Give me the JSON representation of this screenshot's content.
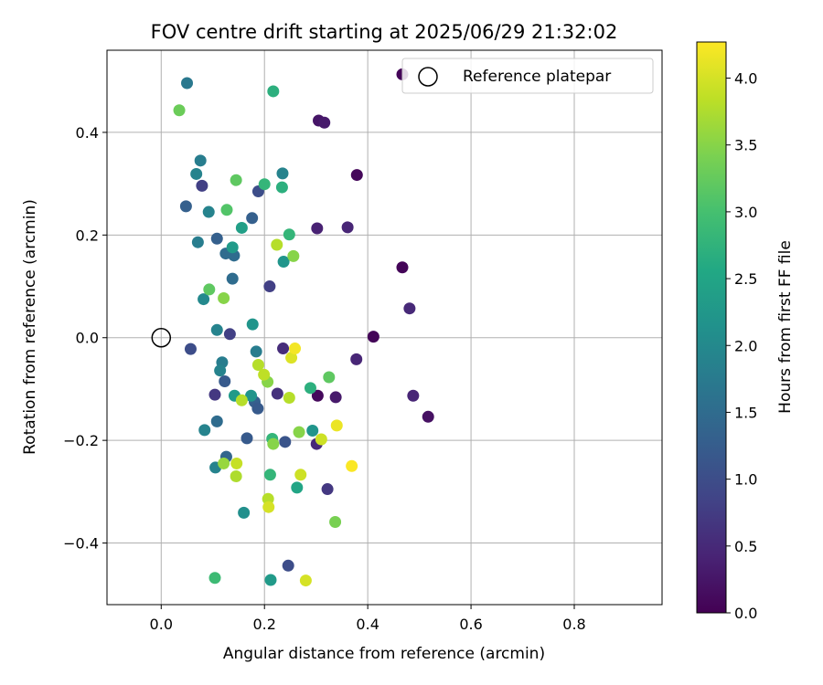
{
  "chart_data": {
    "type": "scatter",
    "title": "FOV centre drift starting at 2025/06/29 21:32:02",
    "xlabel": "Angular distance from reference (arcmin)",
    "ylabel": "Rotation from reference (arcmin)",
    "xlim": [
      -0.105,
      0.97
    ],
    "ylim": [
      -0.52,
      0.56
    ],
    "xticks": [
      0.0,
      0.2,
      0.4,
      0.6,
      0.8
    ],
    "xtick_labels": [
      "0.0",
      "0.2",
      "0.4",
      "0.6",
      "0.8"
    ],
    "yticks": [
      -0.4,
      -0.2,
      0.0,
      0.2,
      0.4
    ],
    "ytick_labels": [
      "−0.4",
      "−0.2",
      "0.0",
      "0.2",
      "0.4"
    ],
    "grid": true,
    "legend": {
      "position": "top-right",
      "entries": [
        "Reference platepar"
      ]
    },
    "reference_point": {
      "x": 0.0,
      "y": 0.0
    },
    "colorbar": {
      "label": "Hours from first FF file",
      "range": [
        0.0,
        4.27
      ],
      "ticks": [
        0.0,
        0.5,
        1.0,
        1.5,
        2.0,
        2.5,
        3.0,
        3.5,
        4.0
      ],
      "tick_labels": [
        "0.0",
        "0.5",
        "1.0",
        "1.5",
        "2.0",
        "2.5",
        "3.0",
        "3.5",
        "4.0"
      ],
      "colormap": "viridis"
    },
    "points": [
      {
        "x": 0.467,
        "y": 0.513,
        "h": 0.05
      },
      {
        "x": 0.305,
        "y": 0.423,
        "h": 0.25
      },
      {
        "x": 0.316,
        "y": 0.419,
        "h": 0.3
      },
      {
        "x": 0.379,
        "y": 0.317,
        "h": 0.08
      },
      {
        "x": 0.302,
        "y": 0.213,
        "h": 0.4
      },
      {
        "x": 0.361,
        "y": 0.215,
        "h": 0.45
      },
      {
        "x": 0.467,
        "y": 0.137,
        "h": 0.05
      },
      {
        "x": 0.481,
        "y": 0.057,
        "h": 0.5
      },
      {
        "x": 0.411,
        "y": 0.002,
        "h": 0.05
      },
      {
        "x": 0.378,
        "y": -0.042,
        "h": 0.45
      },
      {
        "x": 0.488,
        "y": -0.113,
        "h": 0.45
      },
      {
        "x": 0.517,
        "y": -0.154,
        "h": 0.2
      },
      {
        "x": 0.303,
        "y": -0.113,
        "h": 0.1
      },
      {
        "x": 0.338,
        "y": -0.116,
        "h": 0.3
      },
      {
        "x": 0.301,
        "y": -0.207,
        "h": 0.5
      },
      {
        "x": 0.322,
        "y": -0.295,
        "h": 0.7
      },
      {
        "x": 0.246,
        "y": -0.444,
        "h": 1.0
      },
      {
        "x": 0.236,
        "y": -0.021,
        "h": 0.55
      },
      {
        "x": 0.225,
        "y": -0.109,
        "h": 0.6
      },
      {
        "x": 0.21,
        "y": 0.1,
        "h": 0.8
      },
      {
        "x": 0.133,
        "y": 0.007,
        "h": 0.8
      },
      {
        "x": 0.104,
        "y": -0.111,
        "h": 0.7
      },
      {
        "x": 0.057,
        "y": -0.022,
        "h": 1.0
      },
      {
        "x": 0.079,
        "y": 0.296,
        "h": 0.8
      },
      {
        "x": 0.188,
        "y": 0.285,
        "h": 1.0
      },
      {
        "x": 0.24,
        "y": -0.203,
        "h": 1.1
      },
      {
        "x": 0.166,
        "y": -0.196,
        "h": 1.2
      },
      {
        "x": 0.126,
        "y": -0.232,
        "h": 1.4
      },
      {
        "x": 0.123,
        "y": -0.085,
        "h": 1.2
      },
      {
        "x": 0.181,
        "y": -0.125,
        "h": 1.3
      },
      {
        "x": 0.187,
        "y": -0.138,
        "h": 1.2
      },
      {
        "x": 0.138,
        "y": 0.115,
        "h": 1.5
      },
      {
        "x": 0.125,
        "y": 0.164,
        "h": 1.5
      },
      {
        "x": 0.141,
        "y": 0.16,
        "h": 1.5
      },
      {
        "x": 0.108,
        "y": 0.193,
        "h": 1.3
      },
      {
        "x": 0.176,
        "y": 0.233,
        "h": 1.3
      },
      {
        "x": 0.048,
        "y": 0.256,
        "h": 1.3
      },
      {
        "x": 0.05,
        "y": 0.496,
        "h": 1.7
      },
      {
        "x": 0.076,
        "y": 0.345,
        "h": 1.8
      },
      {
        "x": 0.068,
        "y": 0.319,
        "h": 1.9
      },
      {
        "x": 0.092,
        "y": 0.245,
        "h": 1.9
      },
      {
        "x": 0.071,
        "y": 0.186,
        "h": 1.8
      },
      {
        "x": 0.082,
        "y": 0.075,
        "h": 2.0
      },
      {
        "x": 0.108,
        "y": 0.015,
        "h": 1.9
      },
      {
        "x": 0.118,
        "y": -0.048,
        "h": 1.8
      },
      {
        "x": 0.114,
        "y": -0.064,
        "h": 1.9
      },
      {
        "x": 0.108,
        "y": -0.163,
        "h": 1.5
      },
      {
        "x": 0.084,
        "y": -0.18,
        "h": 1.9
      },
      {
        "x": 0.105,
        "y": -0.253,
        "h": 1.9
      },
      {
        "x": 0.16,
        "y": -0.341,
        "h": 2.1
      },
      {
        "x": 0.235,
        "y": 0.32,
        "h": 1.9
      },
      {
        "x": 0.237,
        "y": 0.148,
        "h": 2.2
      },
      {
        "x": 0.138,
        "y": 0.176,
        "h": 2.3
      },
      {
        "x": 0.156,
        "y": 0.214,
        "h": 2.4
      },
      {
        "x": 0.177,
        "y": 0.026,
        "h": 2.2
      },
      {
        "x": 0.184,
        "y": -0.027,
        "h": 1.8
      },
      {
        "x": 0.174,
        "y": -0.113,
        "h": 2.2
      },
      {
        "x": 0.142,
        "y": -0.113,
        "h": 2.3
      },
      {
        "x": 0.293,
        "y": -0.181,
        "h": 2.2
      },
      {
        "x": 0.263,
        "y": -0.292,
        "h": 2.5
      },
      {
        "x": 0.212,
        "y": -0.472,
        "h": 2.3
      },
      {
        "x": 0.217,
        "y": 0.48,
        "h": 2.7
      },
      {
        "x": 0.234,
        "y": 0.293,
        "h": 2.7
      },
      {
        "x": 0.2,
        "y": 0.299,
        "h": 2.8
      },
      {
        "x": 0.248,
        "y": 0.201,
        "h": 2.8
      },
      {
        "x": 0.289,
        "y": -0.098,
        "h": 2.7
      },
      {
        "x": 0.211,
        "y": -0.267,
        "h": 2.8
      },
      {
        "x": 0.215,
        "y": -0.197,
        "h": 2.8
      },
      {
        "x": 0.104,
        "y": -0.468,
        "h": 2.9
      },
      {
        "x": 0.035,
        "y": 0.443,
        "h": 3.3
      },
      {
        "x": 0.145,
        "y": 0.307,
        "h": 3.2
      },
      {
        "x": 0.127,
        "y": 0.249,
        "h": 3.1
      },
      {
        "x": 0.093,
        "y": 0.094,
        "h": 3.2
      },
      {
        "x": 0.121,
        "y": 0.077,
        "h": 3.5
      },
      {
        "x": 0.256,
        "y": 0.159,
        "h": 3.5
      },
      {
        "x": 0.206,
        "y": -0.086,
        "h": 3.5
      },
      {
        "x": 0.325,
        "y": -0.077,
        "h": 3.2
      },
      {
        "x": 0.267,
        "y": -0.184,
        "h": 3.5
      },
      {
        "x": 0.217,
        "y": -0.207,
        "h": 3.5
      },
      {
        "x": 0.337,
        "y": -0.359,
        "h": 3.4
      },
      {
        "x": 0.121,
        "y": -0.245,
        "h": 3.6
      },
      {
        "x": 0.224,
        "y": 0.181,
        "h": 3.8
      },
      {
        "x": 0.188,
        "y": -0.053,
        "h": 3.8
      },
      {
        "x": 0.199,
        "y": -0.072,
        "h": 3.85
      },
      {
        "x": 0.156,
        "y": -0.122,
        "h": 3.8
      },
      {
        "x": 0.248,
        "y": -0.117,
        "h": 3.8
      },
      {
        "x": 0.145,
        "y": -0.27,
        "h": 3.75
      },
      {
        "x": 0.146,
        "y": -0.245,
        "h": 3.9
      },
      {
        "x": 0.207,
        "y": -0.314,
        "h": 3.8
      },
      {
        "x": 0.208,
        "y": -0.33,
        "h": 4.0
      },
      {
        "x": 0.27,
        "y": -0.267,
        "h": 3.95
      },
      {
        "x": 0.28,
        "y": -0.473,
        "h": 4.0
      },
      {
        "x": 0.252,
        "y": -0.039,
        "h": 4.05
      },
      {
        "x": 0.259,
        "y": -0.021,
        "h": 4.2
      },
      {
        "x": 0.31,
        "y": -0.198,
        "h": 3.95
      },
      {
        "x": 0.34,
        "y": -0.171,
        "h": 4.15
      },
      {
        "x": 0.369,
        "y": -0.25,
        "h": 4.25
      }
    ]
  }
}
